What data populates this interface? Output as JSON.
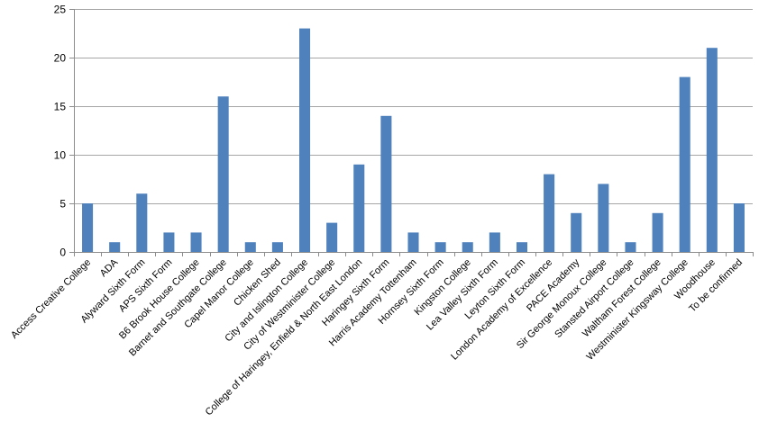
{
  "chart_data": {
    "type": "bar",
    "title": "",
    "xlabel": "",
    "ylabel": "",
    "ylim": [
      0,
      25
    ],
    "yticks": [
      0,
      5,
      10,
      15,
      20,
      25
    ],
    "grid": true,
    "legend": "none",
    "bar_color": "#4f81bd",
    "categories": [
      "Access Creative College",
      "ADA",
      "Alyward Sixth Form",
      "APS Sixth Form",
      "B6 Brook House College",
      "Barnet and Southgate College",
      "Capel Manor College",
      "Chicken Shed",
      "City and Islington College",
      "City of Westminister College",
      "College of Haringey, Enfield & North East London",
      "Haringey Sixth Form",
      "Harris Academy Tottenham",
      "Hornsey Sixth Form",
      "Kingston College",
      "Lea Valley Sixth Form",
      "Leyton Sixth Form",
      "London Academy of Excellence",
      "PACE Academy",
      "Sir George Monoux College",
      "Stansted Airport College",
      "Waltham Forest College",
      "Westminister Kingsway College",
      "Woodhouse",
      "To be confirmed"
    ],
    "values": [
      5,
      1,
      6,
      2,
      2,
      16,
      1,
      1,
      23,
      3,
      9,
      14,
      2,
      1,
      1,
      2,
      1,
      8,
      4,
      7,
      1,
      4,
      18,
      21,
      5
    ]
  }
}
